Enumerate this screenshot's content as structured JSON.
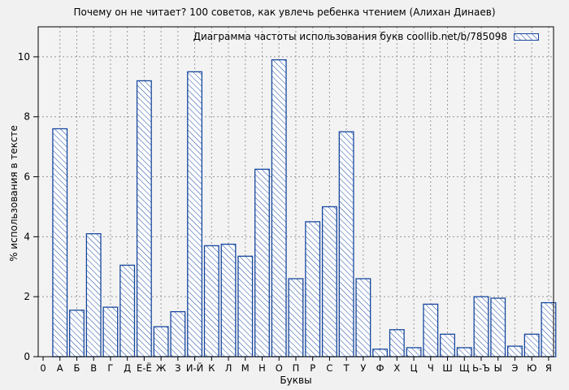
{
  "chart_data": {
    "type": "bar",
    "title": "Почему он не читает? 100 советов, как увлечь ребенка чтением (Алихан Динаев)",
    "legend": "Диаграмма частоты использования букв coollib.net/b/785098",
    "legend_position": "top-right",
    "xlabel": "Буквы",
    "ylabel": "% использования в тексте",
    "origin_label": "0",
    "categories": [
      "А",
      "Б",
      "В",
      "Г",
      "Д",
      "Е-Ё",
      "Ж",
      "З",
      "И-Й",
      "К",
      "Л",
      "М",
      "Н",
      "О",
      "П",
      "Р",
      "С",
      "Т",
      "У",
      "Ф",
      "Х",
      "Ц",
      "Ч",
      "Ш",
      "Щ",
      "Ь-Ъ",
      "Ы",
      "Э",
      "Ю",
      "Я"
    ],
    "values": [
      7.6,
      1.55,
      4.1,
      1.65,
      3.05,
      9.2,
      1.0,
      1.5,
      9.5,
      3.7,
      3.75,
      3.35,
      6.25,
      9.9,
      2.6,
      4.5,
      5.0,
      7.5,
      2.6,
      0.25,
      0.9,
      0.3,
      1.75,
      0.75,
      0.3,
      2.0,
      1.95,
      0.35,
      0.75,
      1.8
    ],
    "yticks": [
      0,
      2,
      4,
      6,
      8,
      10
    ],
    "ylim": [
      0,
      11
    ],
    "grid": true,
    "bar_style": "diagonal-hatch",
    "colors": {
      "bar_stroke": "#17479e",
      "bar_fill": "#ffffff",
      "grid": "#999999",
      "frame": "#000000",
      "background": "#f1f1f1",
      "plot_background": "#f3f3f3"
    }
  }
}
